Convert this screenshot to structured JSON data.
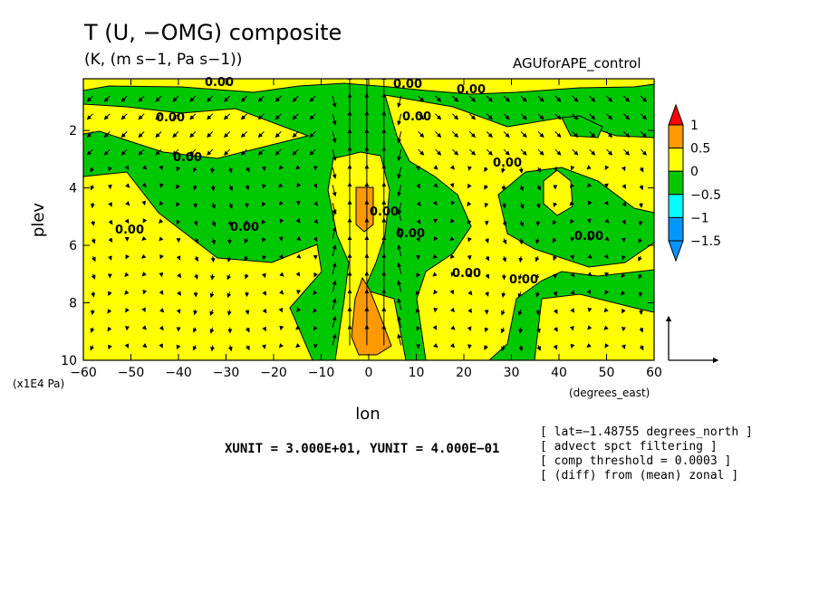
{
  "title": "T (U, −OMG) composite",
  "subtitle": "(K, (m s−1, Pa s−1))",
  "dataset": "AGUforAPE_control",
  "units_label": "XUNIT = 3.000E+01, YUNIT = 4.000E−01",
  "notes": [
    "[ lat=−1.48755 degrees_north ]",
    "[ advect spct filtering ]",
    "[ comp threshold = 0.0003 ]",
    "[ (diff) from (mean) zonal ]"
  ],
  "colors": {
    "green": "#00c800",
    "yellow": "#ffff00",
    "orange": "#ff9900",
    "red": "#ff0000",
    "cyan": "#00ffff",
    "blue": "#0096ff"
  },
  "chart_data": {
    "type": "heatmap",
    "xlabel": "lon",
    "x_unit_label": "(degrees_east)",
    "ylabel": "plev",
    "y_unit_label": "(x1E4 Pa)",
    "xlim": [
      -60,
      60
    ],
    "ylim": [
      10,
      0.2
    ],
    "x_ticks": [
      "-60",
      "-50",
      "-40",
      "-30",
      "-20",
      "-10",
      "0",
      "10",
      "20",
      "30",
      "40",
      "50",
      "60"
    ],
    "y_ticks": [
      "2",
      "4",
      "6",
      "8",
      "10"
    ],
    "contour_labels": [
      "0.00",
      "0.00",
      "0.00",
      "0.00",
      "0.00",
      "0.00",
      "0.00",
      "0.00",
      "0.00",
      "0.00",
      "0.00",
      "0.00",
      "0.00",
      "0.00"
    ],
    "colorbar": {
      "labels": [
        "1",
        "0.5",
        "0",
        "−0.5",
        "−1",
        "−1.5"
      ],
      "levels": [
        -1.5,
        -1,
        -0.5,
        0,
        0.5,
        1
      ]
    },
    "vector_reference": {
      "x": 30,
      "y": 0.4
    },
    "grid": false,
    "legend_position": "right"
  }
}
